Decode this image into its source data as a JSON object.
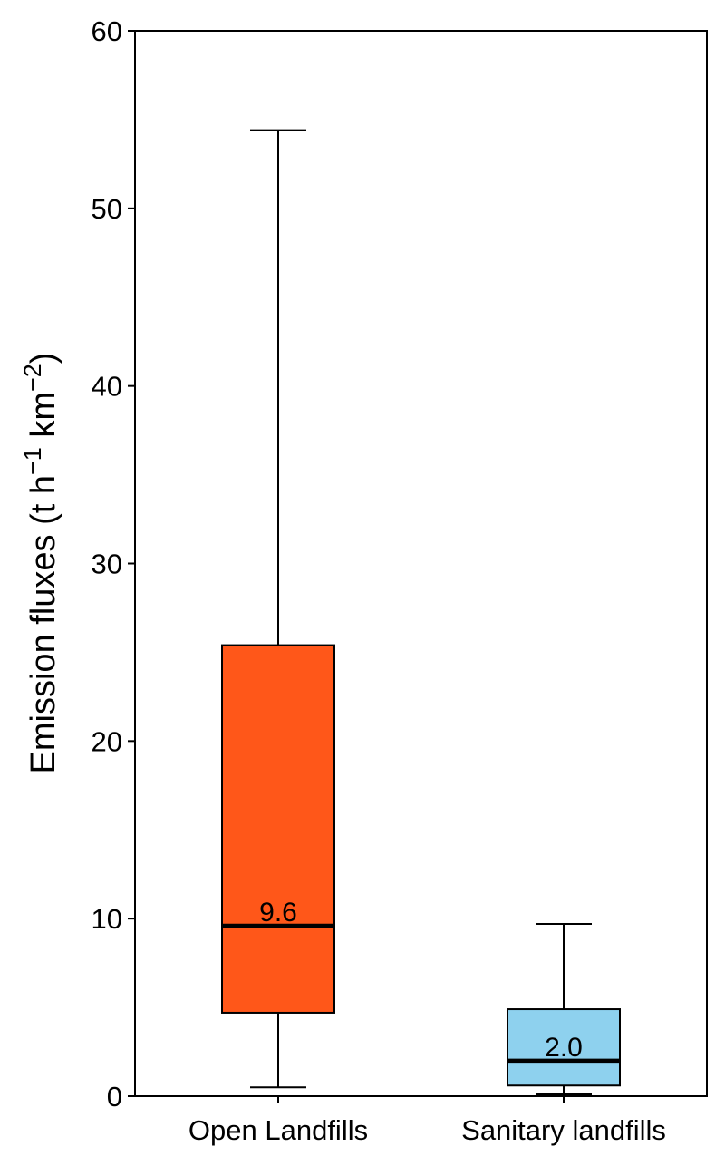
{
  "chart_data": {
    "type": "box",
    "ylabel": {
      "prefix": "Emission fluxes (t h",
      "exp1": "−1",
      "middle": " km",
      "exp2": "−2",
      "suffix": ")"
    },
    "ylim": [
      0,
      60
    ],
    "yticks": [
      0,
      10,
      20,
      30,
      40,
      50,
      60
    ],
    "categories": [
      "Open Landfills",
      "Sanitary landfills"
    ],
    "boxes": [
      {
        "category": "Open Landfills",
        "whisker_low": 0.5,
        "q1": 4.7,
        "median": 9.6,
        "q3": 25.4,
        "whisker_high": 54.4,
        "median_label": "9.6",
        "color": "#FF5719"
      },
      {
        "category": "Sanitary landfills",
        "whisker_low": 0.1,
        "q1": 0.6,
        "median": 2.0,
        "q3": 4.9,
        "whisker_high": 9.7,
        "median_label": "2.0",
        "color": "#8ED1EE"
      }
    ],
    "grid": false
  }
}
